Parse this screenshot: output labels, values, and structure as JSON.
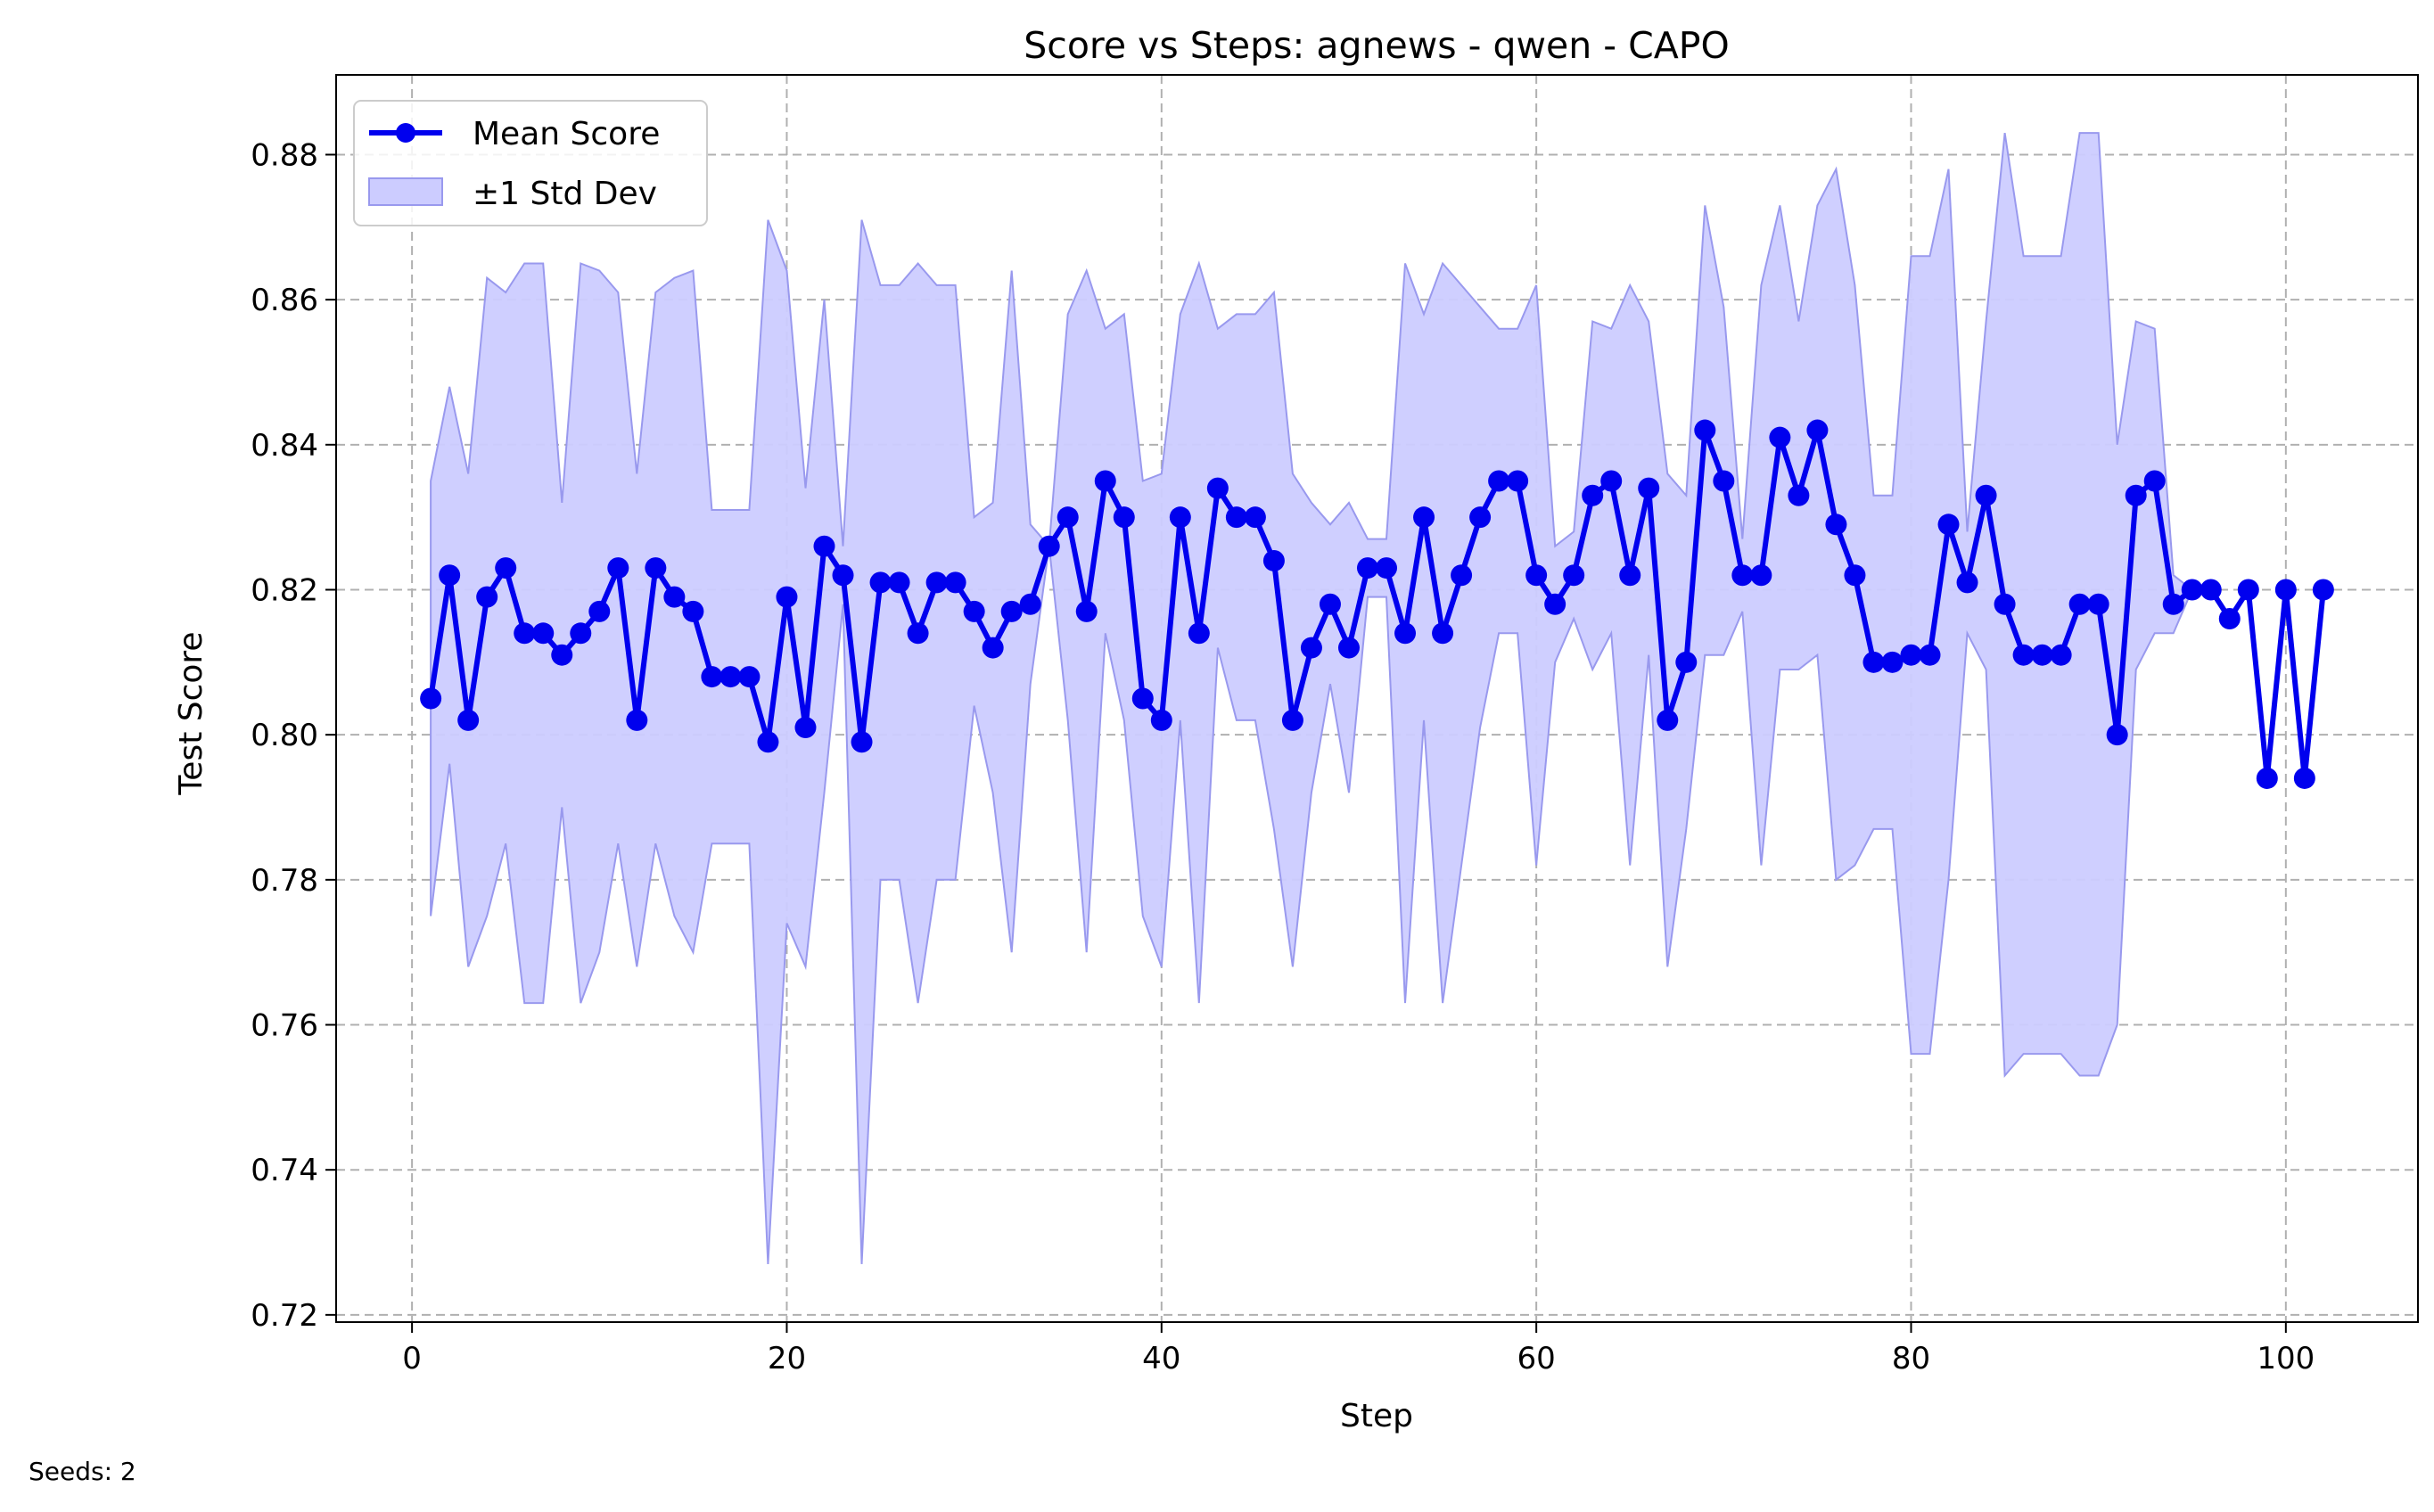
{
  "chart_data": {
    "type": "line",
    "title": "Score vs Steps: agnews - qwen - CAPO",
    "xlabel": "Step",
    "ylabel": "Test Score",
    "xlim": [
      -4.05,
      107.05
    ],
    "ylim": [
      0.719,
      0.891
    ],
    "xticks": [
      0,
      20,
      40,
      60,
      80,
      100
    ],
    "xtick_labels": [
      "0",
      "20",
      "40",
      "60",
      "80",
      "100"
    ],
    "yticks": [
      0.72,
      0.74,
      0.76,
      0.78,
      0.8,
      0.82,
      0.84,
      0.86,
      0.88
    ],
    "ytick_labels": [
      "0.72",
      "0.74",
      "0.76",
      "0.78",
      "0.80",
      "0.82",
      "0.84",
      "0.86",
      "0.88"
    ],
    "grid": true,
    "legend_position": "top-left",
    "legend": [
      "Mean Score",
      "±1 Std Dev"
    ],
    "line_color": "#0000ee",
    "band_color": "#ccccff",
    "x": [
      1,
      2,
      3,
      4,
      5,
      6,
      7,
      8,
      9,
      10,
      11,
      12,
      13,
      14,
      15,
      16,
      17,
      18,
      19,
      20,
      21,
      22,
      23,
      24,
      25,
      26,
      27,
      28,
      29,
      30,
      31,
      32,
      33,
      34,
      35,
      36,
      37,
      38,
      39,
      40,
      41,
      42,
      43,
      44,
      45,
      46,
      47,
      48,
      49,
      50,
      51,
      52,
      53,
      54,
      55,
      56,
      57,
      58,
      59,
      60,
      61,
      62,
      63,
      64,
      65,
      66,
      67,
      68,
      69,
      70,
      71,
      72,
      73,
      74,
      75,
      76,
      77,
      78,
      79,
      80,
      81,
      82,
      83,
      84,
      85,
      86,
      87,
      88,
      89,
      90,
      91,
      92,
      93,
      94,
      95,
      96,
      97,
      98,
      99,
      100,
      101,
      102
    ],
    "series": [
      {
        "name": "Mean Score",
        "values": [
          0.805,
          0.822,
          0.802,
          0.819,
          0.823,
          0.814,
          0.814,
          0.811,
          0.814,
          0.817,
          0.823,
          0.802,
          0.823,
          0.819,
          0.817,
          0.808,
          0.808,
          0.808,
          0.799,
          0.819,
          0.801,
          0.826,
          0.822,
          0.799,
          0.821,
          0.821,
          0.814,
          0.821,
          0.821,
          0.817,
          0.812,
          0.817,
          0.818,
          0.826,
          0.83,
          0.817,
          0.835,
          0.83,
          0.805,
          0.802,
          0.83,
          0.814,
          0.834,
          0.83,
          0.83,
          0.824,
          0.802,
          0.812,
          0.818,
          0.812,
          0.823,
          0.823,
          0.814,
          0.83,
          0.814,
          0.822,
          0.83,
          0.835,
          0.835,
          0.822,
          0.818,
          0.822,
          0.833,
          0.835,
          0.822,
          0.834,
          0.802,
          0.81,
          0.842,
          0.835,
          0.822,
          0.822,
          0.841,
          0.833,
          0.842,
          0.829,
          0.822,
          0.81,
          0.81,
          0.811,
          0.811,
          0.829,
          0.821,
          0.833,
          0.818,
          0.811,
          0.811,
          0.811,
          0.818,
          0.818,
          0.8,
          0.833,
          0.835,
          0.818,
          0.82,
          0.82,
          0.816,
          0.82,
          0.794,
          0.82,
          0.794,
          0.82
        ]
      },
      {
        "name": "±1 Std Dev",
        "upper": [
          0.835,
          0.848,
          0.836,
          0.863,
          0.861,
          0.865,
          0.865,
          0.832,
          0.865,
          0.864,
          0.861,
          0.836,
          0.861,
          0.863,
          0.864,
          0.831,
          0.831,
          0.831,
          0.871,
          0.864,
          0.834,
          0.86,
          0.826,
          0.871,
          0.862,
          0.862,
          0.865,
          0.862,
          0.862,
          0.83,
          0.832,
          0.864,
          0.829,
          0.826,
          0.858,
          0.864,
          0.856,
          0.858,
          0.835,
          0.836,
          0.858,
          0.865,
          0.856,
          0.858,
          0.858,
          0.861,
          0.836,
          0.832,
          0.829,
          0.832,
          0.827,
          0.827,
          0.865,
          0.858,
          0.865,
          0.862,
          0.859,
          0.856,
          0.856,
          0.862,
          0.826,
          0.828,
          0.857,
          0.856,
          0.862,
          0.857,
          0.836,
          0.833,
          0.873,
          0.859,
          0.827,
          0.862,
          0.873,
          0.857,
          0.873,
          0.878,
          0.862,
          0.833,
          0.833,
          0.866,
          0.866,
          0.878,
          0.828,
          0.857,
          0.883,
          0.866,
          0.866,
          0.866,
          0.883,
          0.883,
          0.84,
          0.857,
          0.856,
          0.822,
          0.82,
          0.82,
          0.816,
          0.82,
          0.794,
          0.82,
          0.794,
          0.82
        ],
        "lower": [
          0.775,
          0.796,
          0.768,
          0.775,
          0.785,
          0.763,
          0.763,
          0.79,
          0.763,
          0.77,
          0.785,
          0.768,
          0.785,
          0.775,
          0.77,
          0.785,
          0.785,
          0.785,
          0.727,
          0.774,
          0.768,
          0.792,
          0.818,
          0.727,
          0.78,
          0.78,
          0.763,
          0.78,
          0.78,
          0.804,
          0.792,
          0.77,
          0.807,
          0.826,
          0.802,
          0.77,
          0.814,
          0.802,
          0.775,
          0.768,
          0.802,
          0.763,
          0.812,
          0.802,
          0.802,
          0.787,
          0.768,
          0.792,
          0.807,
          0.792,
          0.819,
          0.819,
          0.763,
          0.802,
          0.763,
          0.782,
          0.801,
          0.814,
          0.814,
          0.782,
          0.81,
          0.816,
          0.809,
          0.814,
          0.782,
          0.811,
          0.768,
          0.787,
          0.811,
          0.811,
          0.817,
          0.782,
          0.809,
          0.809,
          0.811,
          0.78,
          0.782,
          0.787,
          0.787,
          0.756,
          0.756,
          0.78,
          0.814,
          0.809,
          0.753,
          0.756,
          0.756,
          0.756,
          0.753,
          0.753,
          0.76,
          0.809,
          0.814,
          0.814,
          0.82,
          0.82,
          0.816,
          0.82,
          0.794,
          0.82,
          0.794,
          0.82
        ]
      }
    ]
  },
  "footer": {
    "seeds_text": "Seeds: 2"
  }
}
